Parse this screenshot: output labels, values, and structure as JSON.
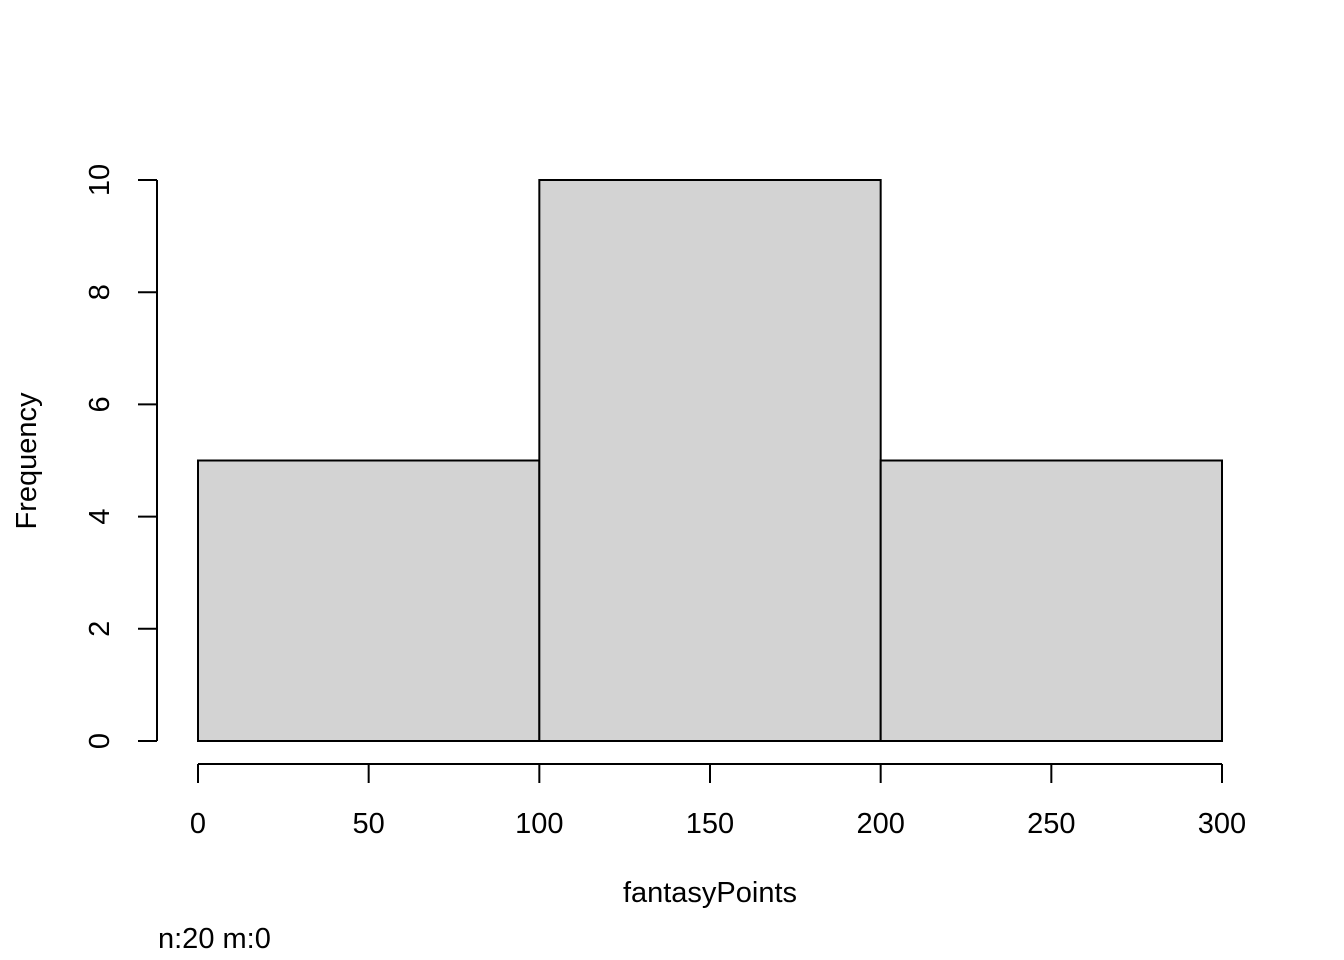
{
  "chart_data": {
    "type": "bar",
    "title": "",
    "xlabel": "fantasyPoints",
    "ylabel": "Frequency",
    "bins": [
      {
        "from": 0,
        "to": 100,
        "count": 5
      },
      {
        "from": 100,
        "to": 200,
        "count": 10
      },
      {
        "from": 200,
        "to": 300,
        "count": 5
      }
    ],
    "xlim": [
      0,
      300
    ],
    "ylim": [
      0,
      10
    ],
    "x_ticks": [
      0,
      50,
      100,
      150,
      200,
      250,
      300
    ],
    "y_ticks": [
      0,
      2,
      4,
      6,
      8,
      10
    ],
    "grid": false,
    "bar_color": "#d3d3d3",
    "edge_color": "#000000",
    "footnote": "n:20 m:0"
  }
}
